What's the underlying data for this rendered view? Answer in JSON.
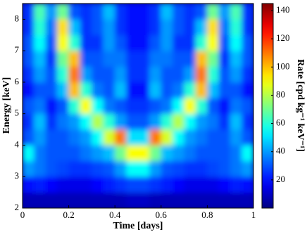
{
  "chart_data": {
    "type": "heatmap",
    "xlabel": "Time [days]",
    "ylabel": "Energy [keV]",
    "colorbar_label": "Rate [cpd kg⁻¹ keV⁻¹]",
    "xlim": [
      0,
      1
    ],
    "ylim": [
      2,
      8.5
    ],
    "xticks": [
      0,
      0.2,
      0.4,
      0.6,
      0.8,
      1
    ],
    "yticks": [
      2,
      3,
      4,
      5,
      6,
      7,
      8
    ],
    "zlim": [
      0,
      145
    ],
    "zticks": [
      20,
      40,
      60,
      80,
      100,
      120,
      140
    ],
    "colormap": "jet",
    "xbins": [
      0,
      0.05,
      0.1,
      0.15,
      0.2,
      0.25,
      0.3,
      0.35,
      0.4,
      0.45,
      0.5,
      0.55,
      0.6,
      0.65,
      0.7,
      0.75,
      0.8,
      0.85,
      0.9,
      0.95,
      1
    ],
    "ybins": [
      2,
      2.5,
      3,
      3.5,
      4,
      4.5,
      5,
      5.5,
      6,
      6.5,
      7,
      7.5,
      8,
      8.5
    ],
    "z": [
      [
        8,
        8,
        8,
        8,
        8,
        8,
        8,
        8,
        8,
        10,
        10,
        8,
        8,
        8,
        8,
        8,
        8,
        8,
        8,
        8
      ],
      [
        20,
        22,
        18,
        15,
        15,
        15,
        18,
        22,
        25,
        28,
        28,
        25,
        22,
        18,
        15,
        15,
        15,
        18,
        22,
        20
      ],
      [
        40,
        35,
        30,
        28,
        25,
        25,
        28,
        30,
        40,
        55,
        55,
        40,
        30,
        28,
        25,
        25,
        28,
        30,
        35,
        40
      ],
      [
        55,
        35,
        30,
        30,
        30,
        35,
        40,
        45,
        70,
        90,
        90,
        70,
        45,
        40,
        35,
        30,
        30,
        30,
        35,
        55
      ],
      [
        30,
        40,
        30,
        30,
        35,
        40,
        55,
        85,
        110,
        50,
        50,
        110,
        85,
        55,
        40,
        35,
        30,
        30,
        40,
        30
      ],
      [
        25,
        45,
        25,
        35,
        40,
        55,
        80,
        60,
        40,
        30,
        30,
        40,
        60,
        80,
        55,
        40,
        35,
        25,
        45,
        25
      ],
      [
        30,
        35,
        20,
        30,
        60,
        90,
        55,
        35,
        30,
        25,
        25,
        30,
        35,
        55,
        90,
        60,
        30,
        20,
        35,
        30
      ],
      [
        20,
        30,
        30,
        45,
        100,
        60,
        35,
        30,
        45,
        20,
        20,
        45,
        30,
        35,
        60,
        100,
        45,
        30,
        30,
        20
      ],
      [
        25,
        40,
        30,
        60,
        110,
        40,
        30,
        30,
        40,
        25,
        25,
        40,
        30,
        30,
        40,
        110,
        60,
        30,
        40,
        25
      ],
      [
        30,
        45,
        25,
        70,
        100,
        30,
        30,
        35,
        35,
        25,
        25,
        35,
        35,
        30,
        30,
        100,
        70,
        25,
        45,
        30
      ],
      [
        30,
        55,
        30,
        90,
        60,
        25,
        25,
        40,
        30,
        20,
        20,
        30,
        40,
        25,
        25,
        60,
        90,
        30,
        55,
        30
      ],
      [
        25,
        60,
        35,
        95,
        45,
        25,
        30,
        40,
        25,
        20,
        20,
        25,
        40,
        30,
        25,
        45,
        95,
        35,
        60,
        25
      ],
      [
        25,
        65,
        40,
        70,
        30,
        25,
        30,
        45,
        25,
        20,
        20,
        25,
        45,
        30,
        25,
        30,
        70,
        40,
        65,
        25
      ]
    ]
  }
}
